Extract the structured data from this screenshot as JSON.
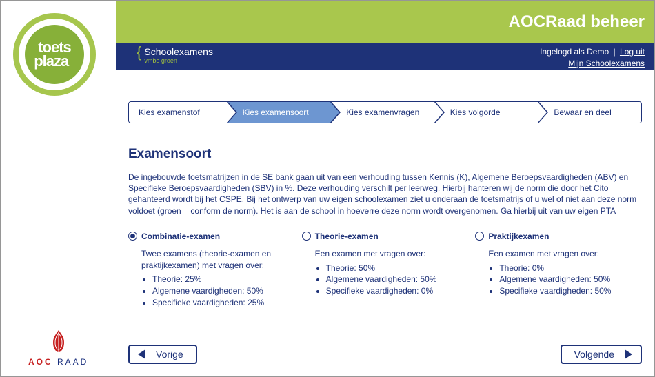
{
  "header": {
    "title": "AOCRaad beheer",
    "brand_line1": "Schoolexamens",
    "brand_line2": "vmbo groen",
    "logged_in_prefix": "Ingelogd als",
    "logged_in_user": "Demo",
    "logout_label": "Log uit",
    "mylink_label": "Mijn Schoolexamens"
  },
  "sidebar": {
    "top_logo": {
      "line1": "toets",
      "line2": "plaza"
    },
    "bottom_logo": {
      "red_part": "AOC",
      "blue_part": " RAAD"
    }
  },
  "stepper": {
    "steps": [
      {
        "label": "Kies examenstof"
      },
      {
        "label": "Kies examensoort"
      },
      {
        "label": "Kies examenvragen"
      },
      {
        "label": "Kies volgorde"
      },
      {
        "label": "Bewaar en deel"
      }
    ],
    "active_index": 1
  },
  "content_area": {
    "heading": "Examensoort",
    "intro": "De ingebouwde toetsmatrijzen in de SE bank gaan uit van een verhouding tussen Kennis (K), Algemene Beroepsvaardigheden (ABV) en Specifieke Beroepsvaardigheden (SBV) in %. Deze verhouding verschilt per leerweg. Hierbij hanteren wij de norm die door het Cito gehanteerd wordt bij het CSPE. Bij het ontwerp van uw eigen schoolexamen ziet u onderaan de toetsmatrijs of u wel of niet aan deze norm voldoet (groen = conform de norm). Het is aan de school in hoeverre deze norm wordt overgenomen. Ga hierbij uit van uw eigen PTA"
  },
  "options": [
    {
      "id": "combi",
      "title": "Combinatie-examen",
      "selected": true,
      "desc_intro": "Twee examens (theorie-examen en praktijkexamen) met vragen over:",
      "bullets": [
        "Theorie: 25%",
        "Algemene vaardigheden: 50%",
        "Specifieke vaardigheden: 25%"
      ]
    },
    {
      "id": "theorie",
      "title": "Theorie-examen",
      "selected": false,
      "desc_intro": "Een examen met vragen over:",
      "bullets": [
        "Theorie: 50%",
        "Algemene vaardigheden: 50%",
        "Specifieke vaardigheden: 0%"
      ]
    },
    {
      "id": "praktijk",
      "title": "Praktijkexamen",
      "selected": false,
      "desc_intro": "Een examen met vragen over:",
      "bullets": [
        "Theorie: 0%",
        "Algemene vaardigheden: 50%",
        "Specifieke vaardigheden: 50%"
      ]
    }
  ],
  "nav": {
    "prev": "Vorige",
    "next": "Volgende"
  },
  "colors": {
    "green": "#a9c74d",
    "blue_dark": "#1e3278",
    "step_active": "#6d96d1",
    "red": "#c62020"
  }
}
